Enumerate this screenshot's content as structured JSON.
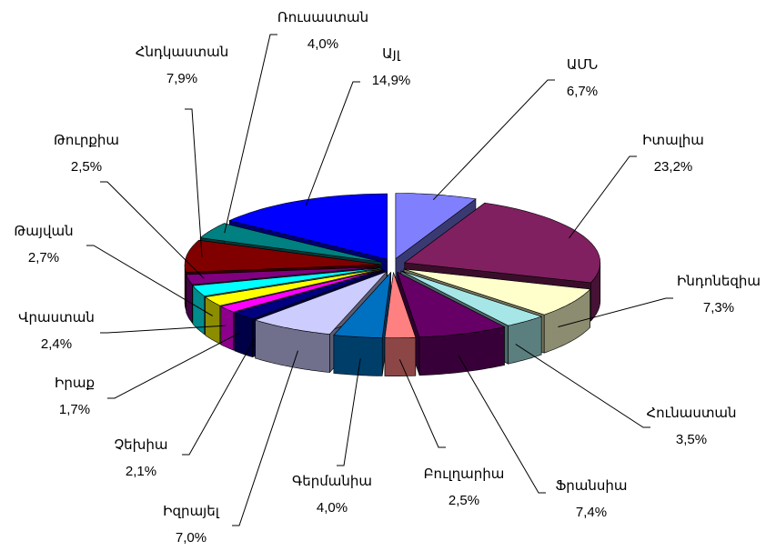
{
  "chart_data": {
    "type": "pie",
    "categories": [
      "ԱՄՆ",
      "Իտալիա",
      "Ինդոնեզիա",
      "Հունաստան",
      "Ֆրանսիա",
      "Բուլղարիա",
      "Գերմանիա",
      "Իզրայել",
      "Չեխիա",
      "Իրաք",
      "Վրաստան",
      "Թայվան",
      "Թուրքիա",
      "Հնդկաստան",
      "Ռուսաստան",
      "Այլ"
    ],
    "values": [
      6.7,
      23.2,
      7.3,
      3.5,
      7.4,
      2.5,
      4.0,
      7.0,
      2.1,
      1.7,
      2.4,
      2.7,
      2.5,
      7.9,
      4.0,
      14.9
    ],
    "value_labels": [
      "6,7%",
      "23,2%",
      "7,3%",
      "3,5%",
      "7,4%",
      "2,5%",
      "4,0%",
      "7,0%",
      "2,1%",
      "1,7%",
      "2,4%",
      "2,7%",
      "2,5%",
      "7,9%",
      "4,0%",
      "14,9%"
    ],
    "colors": [
      "#8080ff",
      "#802060",
      "#ffffcc",
      "#a6e6e6",
      "#660066",
      "#ff8080",
      "#0070c0",
      "#ccccff",
      "#000080",
      "#ff00ff",
      "#ffff00",
      "#00ffff",
      "#800080",
      "#800000",
      "#008080",
      "#0000ff"
    ]
  }
}
